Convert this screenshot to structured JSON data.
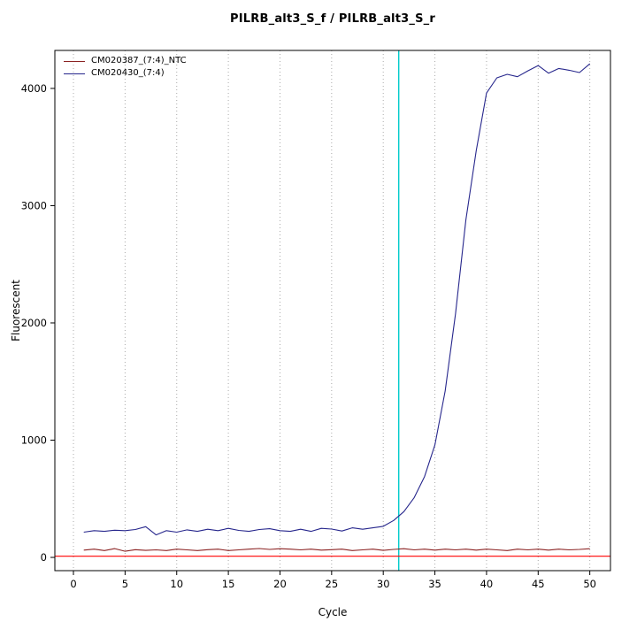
{
  "chart_data": {
    "type": "line",
    "title": "PILRB_alt3_S_f / PILRB_alt3_S_r",
    "xlabel": "Cycle",
    "ylabel": "Fluorescent",
    "xlim": [
      -1.8,
      52
    ],
    "ylim": [
      -113,
      4324
    ],
    "x_ticks": [
      0,
      5,
      10,
      15,
      20,
      25,
      30,
      35,
      40,
      45,
      50
    ],
    "y_ticks": [
      0,
      1000,
      2000,
      3000,
      4000
    ],
    "grid": {
      "vertical_dotted_at": [
        0,
        5,
        10,
        15,
        20,
        25,
        30,
        35,
        40,
        45,
        50
      ],
      "color": "#aaaaaa"
    },
    "threshold_line": {
      "y": 10,
      "color": "#ff0000"
    },
    "ct_line": {
      "x": 31.5,
      "color": "#00cccc"
    },
    "legend_position": "top-left",
    "x": [
      1,
      2,
      3,
      4,
      5,
      6,
      7,
      8,
      9,
      10,
      11,
      12,
      13,
      14,
      15,
      16,
      17,
      18,
      19,
      20,
      21,
      22,
      23,
      24,
      25,
      26,
      27,
      28,
      29,
      30,
      31,
      32,
      33,
      34,
      35,
      36,
      37,
      38,
      39,
      40,
      41,
      42,
      43,
      44,
      45,
      46,
      47,
      48,
      49,
      50
    ],
    "series": [
      {
        "name": "CM020387_(7:4)_NTC",
        "color": "#8b2323",
        "values": [
          62,
          70,
          58,
          75,
          52,
          66,
          60,
          64,
          58,
          70,
          64,
          58,
          66,
          70,
          58,
          64,
          70,
          76,
          68,
          74,
          70,
          64,
          70,
          62,
          66,
          70,
          58,
          64,
          70,
          60,
          68,
          74,
          64,
          70,
          62,
          70,
          64,
          70,
          62,
          70,
          64,
          58,
          70,
          64,
          70,
          62,
          70,
          64,
          68,
          74
        ]
      },
      {
        "name": "CM020430_(7:4)",
        "color": "#26268c",
        "values": [
          215,
          228,
          222,
          232,
          228,
          238,
          262,
          192,
          228,
          215,
          235,
          222,
          240,
          228,
          248,
          230,
          222,
          238,
          245,
          228,
          222,
          240,
          222,
          248,
          242,
          225,
          252,
          240,
          252,
          265,
          315,
          390,
          510,
          690,
          960,
          1420,
          2080,
          2880,
          3470,
          3960,
          4090,
          4120,
          4100,
          4150,
          4195,
          4130,
          4170,
          4155,
          4135,
          4210
        ]
      }
    ]
  }
}
